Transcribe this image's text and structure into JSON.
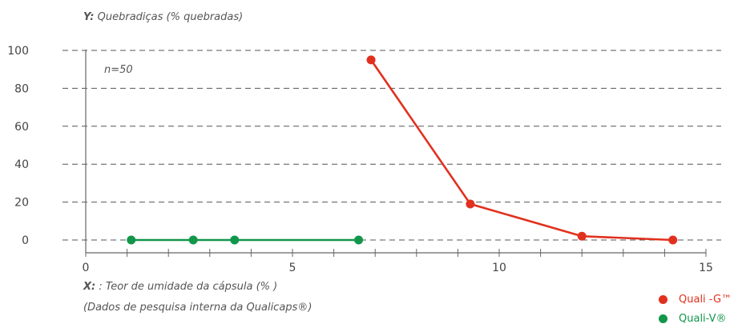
{
  "chart_data": {
    "type": "line",
    "y_axis_prefix": "Y:",
    "y_axis_title": "Quebradiças (% quebradas)",
    "x_axis_prefix": "X:",
    "x_axis_title": ": Teor de umidade da cápsula (% )",
    "x_axis_note": "(Dados de pesquisa interna da Qualicaps®)",
    "annotation": "n=50",
    "xlim": [
      0,
      15
    ],
    "ylim": [
      0,
      100
    ],
    "x_ticks": [
      0,
      5,
      10,
      15
    ],
    "y_ticks": [
      0,
      20,
      40,
      60,
      80,
      100
    ],
    "grid": "horizontal-dashed",
    "legend_position": "bottom-right",
    "series": [
      {
        "name": "Quali -G™",
        "color": "#e2301e",
        "points": [
          [
            6.9,
            95
          ],
          [
            9.3,
            19
          ],
          [
            12.0,
            2
          ],
          [
            14.2,
            0
          ]
        ]
      },
      {
        "name": "Quali-V®",
        "color": "#12964a",
        "points": [
          [
            1.1,
            0
          ],
          [
            2.6,
            0
          ],
          [
            3.6,
            0
          ],
          [
            6.6,
            0
          ]
        ]
      }
    ]
  }
}
